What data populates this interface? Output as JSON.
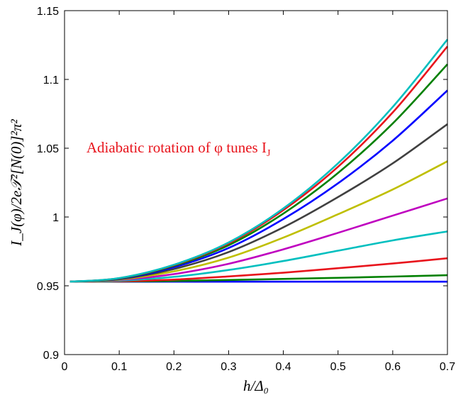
{
  "chart_data": {
    "type": "line",
    "title": "",
    "xlabel": "h/Δ₀",
    "ylabel": "I_J(φ)/2e𝒯²[N(0)]²π²",
    "xlim": [
      0,
      0.7
    ],
    "ylim": [
      0.9,
      1.15
    ],
    "xticks": [
      0,
      0.1,
      0.2,
      0.3,
      0.4,
      0.5,
      0.6,
      0.7
    ],
    "xtick_labels": [
      "0",
      "0.1",
      "0.2",
      "0.3",
      "0.4",
      "0.5",
      "0.6",
      "0.7"
    ],
    "yticks": [
      0.9,
      0.95,
      1.0,
      1.05,
      1.1,
      1.15
    ],
    "ytick_labels": [
      "0.9",
      "0.95",
      "1",
      "1.05",
      "1.1",
      "1.15"
    ],
    "grid": false,
    "annotation": {
      "text": "Adiabatic rotation of φ tunes I",
      "subscript": "J",
      "x": 0.04,
      "y": 1.047,
      "color": "#e8141c"
    },
    "x_start": 0.01,
    "baseline": 0.953,
    "series": [
      {
        "color": "#0000ff",
        "values": [
          [
            0.01,
            0.953
          ],
          [
            0.7,
            0.953
          ]
        ]
      },
      {
        "color": "#008000",
        "values": [
          [
            0.01,
            0.953
          ],
          [
            0.1,
            0.9531
          ],
          [
            0.2,
            0.9535
          ],
          [
            0.3,
            0.9542
          ],
          [
            0.4,
            0.955
          ],
          [
            0.5,
            0.9558
          ],
          [
            0.6,
            0.9567
          ],
          [
            0.7,
            0.9577
          ]
        ]
      },
      {
        "color": "#e8141c",
        "values": [
          [
            0.01,
            0.953
          ],
          [
            0.1,
            0.9533
          ],
          [
            0.2,
            0.9545
          ],
          [
            0.3,
            0.9568
          ],
          [
            0.4,
            0.9595
          ],
          [
            0.5,
            0.9628
          ],
          [
            0.6,
            0.9662
          ],
          [
            0.7,
            0.97
          ]
        ]
      },
      {
        "color": "#00bfbf",
        "values": [
          [
            0.01,
            0.953
          ],
          [
            0.1,
            0.9537
          ],
          [
            0.2,
            0.9565
          ],
          [
            0.3,
            0.9615
          ],
          [
            0.4,
            0.968
          ],
          [
            0.5,
            0.9755
          ],
          [
            0.6,
            0.983
          ],
          [
            0.7,
            0.9895
          ]
        ]
      },
      {
        "color": "#bf00bf",
        "values": [
          [
            0.01,
            0.953
          ],
          [
            0.1,
            0.9542
          ],
          [
            0.2,
            0.9585
          ],
          [
            0.3,
            0.966
          ],
          [
            0.4,
            0.9765
          ],
          [
            0.5,
            0.9885
          ],
          [
            0.6,
            1.001
          ],
          [
            0.7,
            1.0135
          ]
        ]
      },
      {
        "color": "#bfbf00",
        "values": [
          [
            0.01,
            0.953
          ],
          [
            0.1,
            0.9545
          ],
          [
            0.2,
            0.9605
          ],
          [
            0.3,
            0.9705
          ],
          [
            0.4,
            0.985
          ],
          [
            0.5,
            1.002
          ],
          [
            0.6,
            1.02
          ],
          [
            0.7,
            1.0405
          ]
        ]
      },
      {
        "color": "#404040",
        "values": [
          [
            0.01,
            0.953
          ],
          [
            0.1,
            0.9548
          ],
          [
            0.2,
            0.9622
          ],
          [
            0.3,
            0.9745
          ],
          [
            0.4,
            0.9925
          ],
          [
            0.5,
            1.0145
          ],
          [
            0.6,
            1.039
          ],
          [
            0.7,
            1.0675
          ]
        ]
      },
      {
        "color": "#0000ff",
        "values": [
          [
            0.01,
            0.953
          ],
          [
            0.1,
            0.9551
          ],
          [
            0.2,
            0.9635
          ],
          [
            0.3,
            0.9775
          ],
          [
            0.4,
            0.9985
          ],
          [
            0.5,
            1.0245
          ],
          [
            0.6,
            1.0555
          ],
          [
            0.7,
            1.092
          ]
        ]
      },
      {
        "color": "#008000",
        "values": [
          [
            0.01,
            0.953
          ],
          [
            0.1,
            0.9553
          ],
          [
            0.2,
            0.9645
          ],
          [
            0.3,
            0.9795
          ],
          [
            0.4,
            1.0025
          ],
          [
            0.5,
            1.032
          ],
          [
            0.6,
            1.068
          ],
          [
            0.7,
            1.111
          ]
        ]
      },
      {
        "color": "#e8141c",
        "values": [
          [
            0.01,
            0.953
          ],
          [
            0.1,
            0.9555
          ],
          [
            0.2,
            0.965
          ],
          [
            0.3,
            0.9808
          ],
          [
            0.4,
            1.005
          ],
          [
            0.5,
            1.0365
          ],
          [
            0.6,
            1.076
          ],
          [
            0.7,
            1.124
          ]
        ]
      },
      {
        "color": "#00bfbf",
        "values": [
          [
            0.01,
            0.953
          ],
          [
            0.1,
            0.9556
          ],
          [
            0.2,
            0.9653
          ],
          [
            0.3,
            0.9815
          ],
          [
            0.4,
            1.0062
          ],
          [
            0.5,
            1.039
          ],
          [
            0.6,
            1.08
          ],
          [
            0.7,
            1.129
          ]
        ]
      }
    ]
  }
}
